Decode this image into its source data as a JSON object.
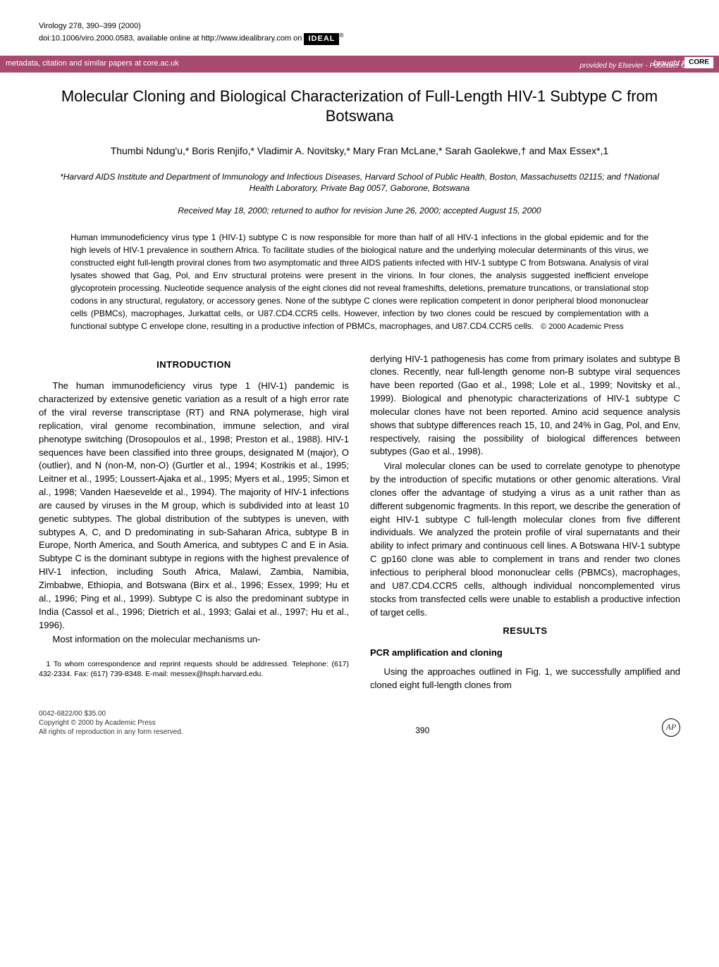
{
  "journal": {
    "citation": "Virology 278, 390–399 (2000)",
    "doi": "doi:10.1006/viro.2000.0583, available online at http://www.idealibrary.com on",
    "ideal_label": "IDEAL"
  },
  "core_banner": {
    "left": "metadata, citation and similar papers at core.ac.uk",
    "badge_prefix": "brought to you by",
    "badge": "CORE",
    "provided": "provided by Elsevier - Publisher Connector"
  },
  "title": "Molecular Cloning and Biological Characterization of Full-Length HIV-1 Subtype C from Botswana",
  "authors": "Thumbi Ndung'u,* Boris Renjifo,* Vladimir A. Novitsky,* Mary Fran McLane,* Sarah Gaolekwe,† and Max Essex*,1",
  "affiliations": "*Harvard AIDS Institute and Department of Immunology and Infectious Diseases, Harvard School of Public Health, Boston, Massachusetts 02115; and †National Health Laboratory, Private Bag 0057, Gaborone, Botswana",
  "dates": "Received May 18, 2000; returned to author for revision June 26, 2000; accepted August 15, 2000",
  "abstract": {
    "text": "Human immunodeficiency virus type 1 (HIV-1) subtype C is now responsible for more than half of all HIV-1 infections in the global epidemic and for the high levels of HIV-1 prevalence in southern Africa. To facilitate studies of the biological nature and the underlying molecular determinants of this virus, we constructed eight full-length proviral clones from two asymptomatic and three AIDS patients infected with HIV-1 subtype C from Botswana. Analysis of viral lysates showed that Gag, Pol, and Env structural proteins were present in the virions. In four clones, the analysis suggested inefficient envelope glycoprotein processing. Nucleotide sequence analysis of the eight clones did not reveal frameshifts, deletions, premature truncations, or translational stop codons in any structural, regulatory, or accessory genes. None of the subtype C clones were replication competent in donor peripheral blood mononuclear cells (PBMCs), macrophages, Jurkattat cells, or U87.CD4.CCR5 cells. However, infection by two clones could be rescued by complementation with a functional subtype C envelope clone, resulting in a productive infection of PBMCs, macrophages, and U87.CD4.CCR5 cells.",
    "copyright": "© 2000 Academic Press"
  },
  "sections": {
    "intro_heading": "INTRODUCTION",
    "results_heading": "RESULTS",
    "pcr_heading": "PCR amplification and cloning"
  },
  "body": {
    "intro_p1": "The human immunodeficiency virus type 1 (HIV-1) pandemic is characterized by extensive genetic variation as a result of a high error rate of the viral reverse transcriptase (RT) and RNA polymerase, high viral replication, viral genome recombination, immune selection, and viral phenotype switching (Drosopoulos et al., 1998; Preston et al., 1988). HIV-1 sequences have been classified into three groups, designated M (major), O (outlier), and N (non-M, non-O) (Gurtler et al., 1994; Kostrikis et al., 1995; Leitner et al., 1995; Loussert-Ajaka et al., 1995; Myers et al., 1995; Simon et al., 1998; Vanden Haesevelde et al., 1994). The majority of HIV-1 infections are caused by viruses in the M group, which is subdivided into at least 10 genetic subtypes. The global distribution of the subtypes is uneven, with subtypes A, C, and D predominating in sub-Saharan Africa, subtype B in Europe, North America, and South America, and subtypes C and E in Asia. Subtype C is the dominant subtype in regions with the highest prevalence of HIV-1 infection, including South Africa, Malawi, Zambia, Namibia, Zimbabwe, Ethiopia, and Botswana (Birx et al., 1996; Essex, 1999; Hu et al., 1996; Ping et al., 1999). Subtype C is also the predominant subtype in India (Cassol et al., 1996; Dietrich et al., 1993; Galai et al., 1997; Hu et al., 1996).",
    "intro_p2": "Most information on the molecular mechanisms un-",
    "col2_p1": "derlying HIV-1 pathogenesis has come from primary isolates and subtype B clones. Recently, near full-length genome non-B subtype viral sequences have been reported (Gao et al., 1998; Lole et al., 1999; Novitsky et al., 1999). Biological and phenotypic characterizations of HIV-1 subtype C molecular clones have not been reported. Amino acid sequence analysis shows that subtype differences reach 15, 10, and 24% in Gag, Pol, and Env, respectively, raising the possibility of biological differences between subtypes (Gao et al., 1998).",
    "col2_p2": "Viral molecular clones can be used to correlate genotype to phenotype by the introduction of specific mutations or other genomic alterations. Viral clones offer the advantage of studying a virus as a unit rather than as different subgenomic fragments. In this report, we describe the generation of eight HIV-1 subtype C full-length molecular clones from five different individuals. We analyzed the protein profile of viral supernatants and their ability to infect primary and continuous cell lines. A Botswana HIV-1 subtype C gp160 clone was able to complement in trans and render two clones infectious to peripheral blood mononuclear cells (PBMCs), macrophages, and U87.CD4.CCR5 cells, although individual noncomplemented virus stocks from transfected cells were unable to establish a productive infection of target cells.",
    "pcr_p1": "Using the approaches outlined in Fig. 1, we successfully amplified and cloned eight full-length clones from"
  },
  "footnote": "1 To whom correspondence and reprint requests should be addressed. Telephone: (617) 432-2334. Fax: (617) 739-8348. E-mail: messex@hsph.harvard.edu.",
  "footer": {
    "issn": "0042-6822/00 $35.00",
    "copyright": "Copyright © 2000 by Academic Press",
    "rights": "All rights of reproduction in any form reserved.",
    "page_number": "390",
    "ap": "AP"
  }
}
